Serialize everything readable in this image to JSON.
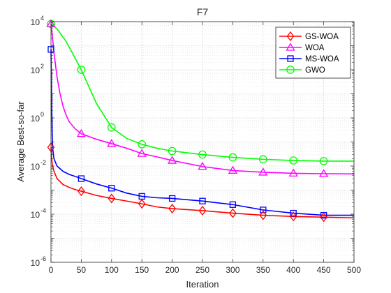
{
  "chart_data": {
    "type": "line",
    "title": "F7",
    "xlabel": "Iteration",
    "ylabel": "Average Best-so-far",
    "xlim": [
      0,
      500
    ],
    "ylim_exponents": [
      -6,
      4
    ],
    "yscale": "log",
    "grid": true,
    "minor_grid": true,
    "legend_position": "top-right",
    "x_ticks": [
      "0",
      "50",
      "100",
      "150",
      "200",
      "250",
      "300",
      "350",
      "400",
      "450",
      "500"
    ],
    "y_ticks": [
      {
        "base": "10",
        "exp": "-6"
      },
      {
        "base": "10",
        "exp": "-4"
      },
      {
        "base": "10",
        "exp": "-2"
      },
      {
        "base": "10",
        "exp": "0"
      },
      {
        "base": "10",
        "exp": "2"
      },
      {
        "base": "10",
        "exp": "4"
      }
    ],
    "series": [
      {
        "name": "GS-WOA",
        "color": "#ff0000",
        "marker": "diamond",
        "x": [
          0,
          2,
          5,
          10,
          20,
          30,
          40,
          50,
          75,
          100,
          125,
          150,
          175,
          200,
          250,
          300,
          350,
          400,
          450,
          500
        ],
        "y": [
          0.06,
          0.012,
          0.006,
          0.003,
          0.0017,
          0.0013,
          0.00105,
          0.0009,
          0.0006,
          0.00045,
          0.00035,
          0.00027,
          0.0002,
          0.00017,
          0.00014,
          0.00011,
          9e-05,
          8e-05,
          7.5e-05,
          7e-05
        ],
        "marker_x": [
          0,
          50,
          100,
          150,
          200,
          250,
          300,
          350,
          400,
          450
        ]
      },
      {
        "name": "WOA",
        "color": "#ff00ff",
        "marker": "triangle",
        "x": [
          0,
          2,
          5,
          10,
          15,
          20,
          25,
          30,
          40,
          50,
          75,
          100,
          125,
          150,
          175,
          200,
          250,
          300,
          350,
          400,
          450,
          500
        ],
        "y": [
          8000,
          3000,
          500,
          50,
          10,
          3,
          1.3,
          0.7,
          0.35,
          0.22,
          0.13,
          0.085,
          0.055,
          0.033,
          0.024,
          0.017,
          0.0095,
          0.0065,
          0.0055,
          0.005,
          0.0048,
          0.0047
        ],
        "marker_x": [
          0,
          50,
          100,
          150,
          200,
          250,
          300,
          350,
          400,
          450
        ]
      },
      {
        "name": "MS-WOA",
        "color": "#0000ff",
        "marker": "square",
        "x": [
          0,
          1,
          2,
          3,
          5,
          10,
          20,
          30,
          40,
          50,
          75,
          100,
          125,
          150,
          175,
          200,
          250,
          300,
          350,
          400,
          450,
          500
        ],
        "y": [
          700,
          10,
          0.2,
          0.05,
          0.02,
          0.01,
          0.006,
          0.0045,
          0.0037,
          0.003,
          0.0018,
          0.0012,
          0.00075,
          0.00055,
          0.00048,
          0.00045,
          0.00035,
          0.00025,
          0.00015,
          0.00011,
          9e-05,
          9e-05
        ],
        "marker_x": [
          0,
          50,
          100,
          150,
          200,
          250,
          300,
          350,
          400,
          450
        ]
      },
      {
        "name": "GWO",
        "color": "#00ff00",
        "marker": "circle",
        "x": [
          0,
          10,
          25,
          40,
          50,
          75,
          100,
          125,
          150,
          175,
          200,
          250,
          300,
          350,
          400,
          450,
          500
        ],
        "y": [
          8000,
          5000,
          1500,
          300,
          100,
          4,
          0.4,
          0.14,
          0.08,
          0.055,
          0.042,
          0.03,
          0.023,
          0.019,
          0.017,
          0.016,
          0.016
        ],
        "marker_x": [
          0,
          50,
          100,
          150,
          200,
          250,
          300,
          350,
          400,
          450
        ]
      }
    ]
  }
}
